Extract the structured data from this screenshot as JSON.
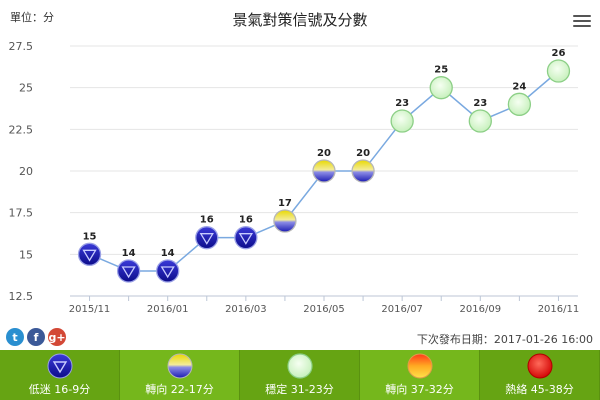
{
  "unit_label": "單位：分",
  "release_text": "下次發布日期：2017-01-26 16:00",
  "share": {
    "twitter": "t",
    "facebook": "f",
    "google": "g+"
  },
  "legend": [
    {
      "label": "低迷 16-9分",
      "icon": "blue-light-icon"
    },
    {
      "label": "轉向 22-17分",
      "icon": "yellow-blue-light-icon"
    },
    {
      "label": "穩定 31-23分",
      "icon": "green-light-icon"
    },
    {
      "label": "轉向 37-32分",
      "icon": "yellow-red-light-icon"
    },
    {
      "label": "熱絡 45-38分",
      "icon": "red-light-icon"
    }
  ],
  "colors": {
    "line": "#7aa9e0",
    "legend_bg": "#66a413",
    "legend_bg_alt": "#75b71c"
  },
  "chart_data": {
    "type": "line",
    "title": "景氣對策信號及分數",
    "xlabel": "",
    "ylabel": "",
    "x": [
      "2015/11",
      "2015/12",
      "2016/01",
      "2016/02",
      "2016/03",
      "2016/04",
      "2016/05",
      "2016/06",
      "2016/07",
      "2016/08",
      "2016/09",
      "2016/10",
      "2016/11"
    ],
    "xticks": [
      "2015/11",
      "2016/01",
      "2016/03",
      "2016/05",
      "2016/07",
      "2016/09",
      "2016/11"
    ],
    "values": [
      15,
      14,
      14,
      16,
      16,
      17,
      20,
      20,
      23,
      25,
      23,
      24,
      26
    ],
    "signals": [
      "blue",
      "blue",
      "blue",
      "blue",
      "blue",
      "yellow-blue",
      "yellow-blue",
      "yellow-blue",
      "green",
      "green",
      "green",
      "green",
      "green"
    ],
    "yticks": [
      12.5,
      15,
      17.5,
      20,
      22.5,
      25,
      27.5
    ],
    "ylim": [
      12.5,
      27.5
    ],
    "grid": "horizontal",
    "data_labels": true
  }
}
